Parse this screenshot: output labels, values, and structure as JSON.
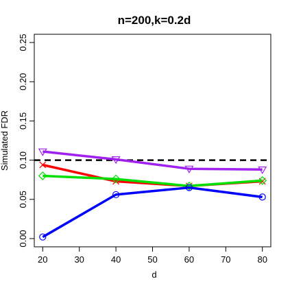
{
  "chart_data": {
    "type": "line",
    "title": "n=200,k=0.2d",
    "xlabel": "d",
    "ylabel": "Simulated FDR",
    "xlim": [
      17.7,
      82.3
    ],
    "ylim": [
      -0.0105,
      0.2605
    ],
    "xticks": [
      "20",
      "30",
      "40",
      "50",
      "60",
      "70",
      "80"
    ],
    "yticks": [
      "0.00",
      "0.05",
      "0.10",
      "0.15",
      "0.20",
      "0.25"
    ],
    "reference_line": {
      "y": 0.1,
      "style": "dashed",
      "color": "#000000"
    },
    "x": [
      20,
      40,
      60,
      80
    ],
    "series": [
      {
        "color": "#ff0000",
        "marker": "x",
        "values": [
          0.094,
          0.073,
          0.067,
          0.073
        ]
      },
      {
        "color": "#00e000",
        "marker": "diamond",
        "values": [
          0.08,
          0.076,
          0.067,
          0.074
        ]
      },
      {
        "color": "#0000ff",
        "marker": "circle",
        "values": [
          0.002,
          0.056,
          0.065,
          0.053
        ]
      },
      {
        "color": "#a020f0",
        "marker": "triangle-down",
        "values": [
          0.111,
          0.101,
          0.089,
          0.088
        ]
      }
    ]
  }
}
